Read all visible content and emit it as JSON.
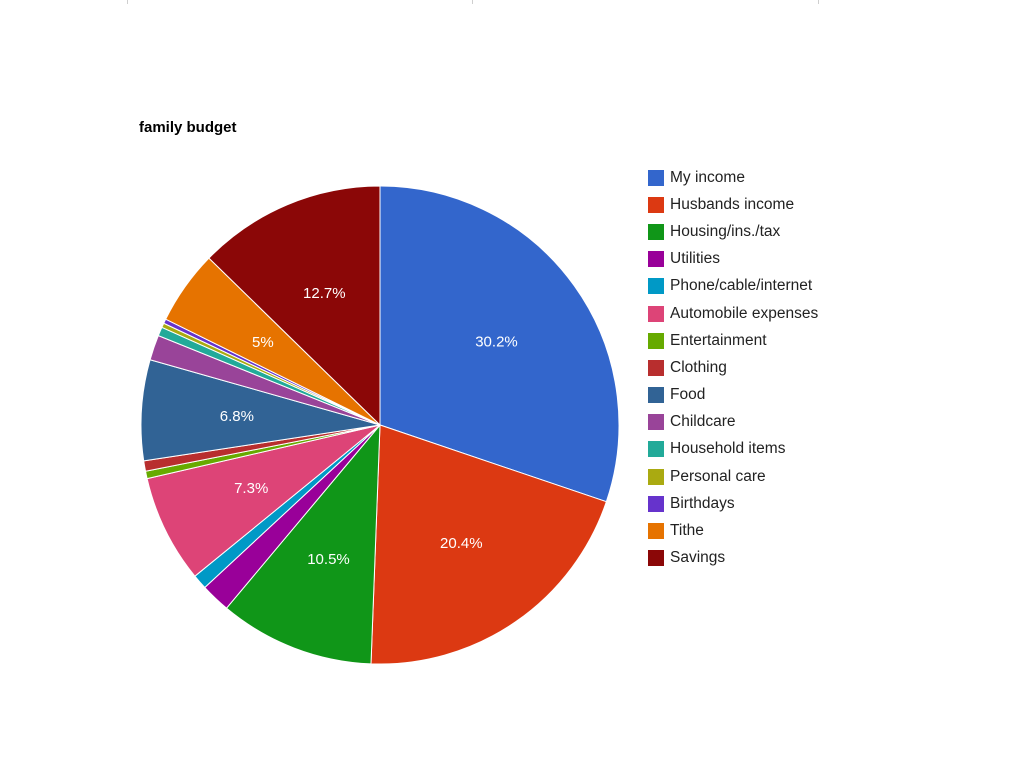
{
  "chart_data": {
    "type": "pie",
    "title": "family budget",
    "legend_position": "right",
    "slices": [
      {
        "name": "My income",
        "value": 30.2,
        "label": "30.2%",
        "color": "#3366cc"
      },
      {
        "name": "Husbands income",
        "value": 20.4,
        "label": "20.4%",
        "color": "#dc3912"
      },
      {
        "name": "Housing/ins./tax",
        "value": 10.5,
        "label": "10.5%",
        "color": "#109618"
      },
      {
        "name": "Utilities",
        "value": 2.0,
        "label": "",
        "color": "#990099"
      },
      {
        "name": "Phone/cable/internet",
        "value": 1.0,
        "label": "",
        "color": "#0099c6"
      },
      {
        "name": "Automobile expenses",
        "value": 7.3,
        "label": "7.3%",
        "color": "#dd4477"
      },
      {
        "name": "Entertainment",
        "value": 0.5,
        "label": "",
        "color": "#66aa00"
      },
      {
        "name": "Clothing",
        "value": 0.7,
        "label": "",
        "color": "#b82e2e"
      },
      {
        "name": "Food",
        "value": 6.8,
        "label": "6.8%",
        "color": "#316395"
      },
      {
        "name": "Childcare",
        "value": 1.7,
        "label": "",
        "color": "#994499"
      },
      {
        "name": "Household items",
        "value": 0.6,
        "label": "",
        "color": "#22aa99"
      },
      {
        "name": "Personal care",
        "value": 0.3,
        "label": "",
        "color": "#aaaa11"
      },
      {
        "name": "Birthdays",
        "value": 0.3,
        "label": "",
        "color": "#6633cc"
      },
      {
        "name": "Tithe",
        "value": 5.0,
        "label": "5%",
        "color": "#e67300"
      },
      {
        "name": "Savings",
        "value": 12.7,
        "label": "12.7%",
        "color": "#8b0707"
      }
    ]
  }
}
